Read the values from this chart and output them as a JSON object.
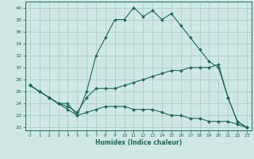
{
  "xlabel": "Humidex (Indice chaleur)",
  "bg_color": "#cfe8e5",
  "line_color": "#1a6b5a",
  "grid_color": "#a8d0cc",
  "xlim": [
    -0.5,
    23.5
  ],
  "ylim": [
    19.5,
    41
  ],
  "xticks": [
    0,
    1,
    2,
    3,
    4,
    5,
    6,
    7,
    8,
    9,
    10,
    11,
    12,
    13,
    14,
    15,
    16,
    17,
    18,
    19,
    20,
    21,
    22,
    23
  ],
  "yticks": [
    20,
    22,
    24,
    26,
    28,
    30,
    32,
    34,
    36,
    38,
    40
  ],
  "series1_x": [
    0,
    1,
    2,
    3,
    4,
    5,
    6,
    7,
    8,
    9,
    10,
    11,
    12,
    13,
    14,
    15,
    16,
    17,
    18,
    19,
    20,
    21,
    22,
    23
  ],
  "series1_y": [
    27,
    26,
    25,
    24,
    24,
    22,
    26,
    32,
    35,
    38,
    38,
    40,
    38.5,
    39.5,
    38,
    39,
    37,
    35,
    33,
    31,
    30,
    25,
    21,
    20
  ],
  "series2_x": [
    0,
    1,
    2,
    3,
    4,
    5,
    6,
    7,
    8,
    9,
    10,
    11,
    12,
    13,
    14,
    15,
    16,
    17,
    18,
    19,
    20,
    21,
    22,
    23
  ],
  "series2_y": [
    27,
    26,
    25,
    24,
    23.5,
    22.5,
    25,
    26.5,
    26.5,
    26.5,
    27,
    27.5,
    28,
    28.5,
    29,
    29.5,
    29.5,
    30,
    30,
    30,
    30.5,
    25,
    21,
    20
  ],
  "series3_x": [
    0,
    1,
    2,
    3,
    4,
    5,
    6,
    7,
    8,
    9,
    10,
    11,
    12,
    13,
    14,
    15,
    16,
    17,
    18,
    19,
    20,
    21,
    22,
    23
  ],
  "series3_y": [
    27,
    26,
    25,
    24,
    23,
    22,
    22.5,
    23,
    23.5,
    23.5,
    23.5,
    23,
    23,
    23,
    22.5,
    22,
    22,
    21.5,
    21.5,
    21,
    21,
    21,
    20.5,
    20
  ]
}
